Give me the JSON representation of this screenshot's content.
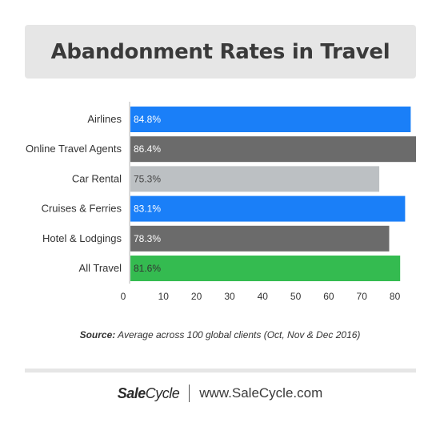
{
  "title": "Abandonment Rates in Travel",
  "chart_data": {
    "type": "bar",
    "orientation": "horizontal",
    "categories": [
      "Airlines",
      "Online Travel Agents",
      "Car Rental",
      "Cruises & Ferries",
      "Hotel & Lodgings",
      "All Travel"
    ],
    "values": [
      84.8,
      86.4,
      75.3,
      83.1,
      78.3,
      81.6
    ],
    "value_labels": [
      "84.8%",
      "86.4%",
      "75.3%",
      "83.1%",
      "78.3%",
      "81.6%"
    ],
    "colors": [
      "#1a7ff8",
      "#6b6b6b",
      "#bcc0c3",
      "#1a7ff8",
      "#6b6b6b",
      "#34bb50"
    ],
    "label_colors": [
      "#ffffff",
      "#ffffff",
      "#444444",
      "#ffffff",
      "#ffffff",
      "#333333"
    ],
    "xticks": [
      0,
      10,
      20,
      30,
      40,
      50,
      60,
      70,
      80
    ],
    "xlim": [
      0,
      86.4
    ],
    "grid": false
  },
  "source": {
    "label": "Source:",
    "text": "Average across 100 global clients (Oct, Nov & Dec 2016)"
  },
  "footer": {
    "brand_bold": "Sale",
    "brand_rest": "Cycle",
    "url": "www.SaleCycle.com"
  }
}
